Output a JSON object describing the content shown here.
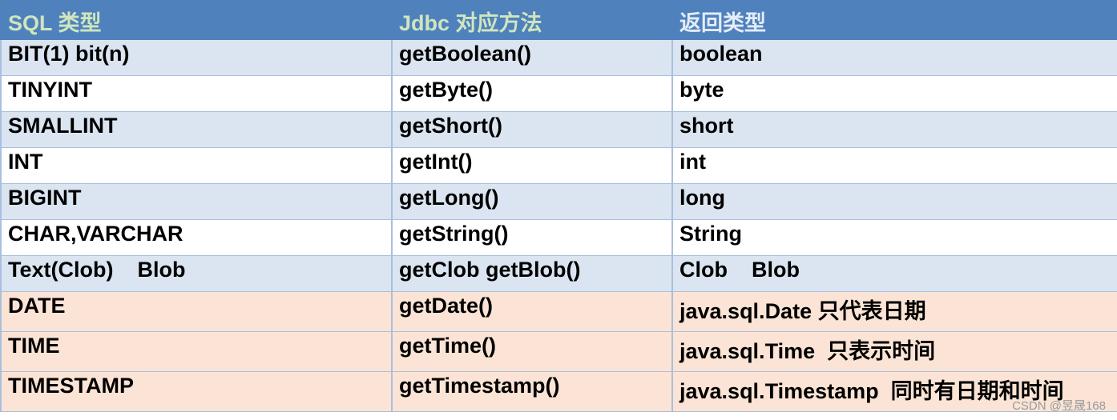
{
  "table": {
    "header": [
      "SQL 类型",
      "Jdbc 对应方法",
      "返回类型"
    ],
    "rows": [
      [
        "BIT(1) bit(n)",
        "getBoolean()",
        "boolean"
      ],
      [
        "TINYINT",
        "getByte()",
        "byte"
      ],
      [
        "SMALLINT",
        "getShort()",
        "short"
      ],
      [
        "INT",
        "getInt()",
        "int"
      ],
      [
        "BIGINT",
        "getLong()",
        "long"
      ],
      [
        "CHAR,VARCHAR",
        "getString()",
        "String"
      ],
      [
        "Text(Clob)    Blob",
        "getClob getBlob()",
        "Clob    Blob"
      ],
      [
        "DATE",
        "getDate()",
        "java.sql.Date 只代表日期"
      ],
      [
        "TIME",
        "getTime()",
        "java.sql.Time  只表示时间"
      ],
      [
        "TIMESTAMP",
        "getTimestamp()",
        "java.sql.Timestamp  同时有日期和时间"
      ]
    ]
  },
  "watermark": "CSDN @昱晟168"
}
